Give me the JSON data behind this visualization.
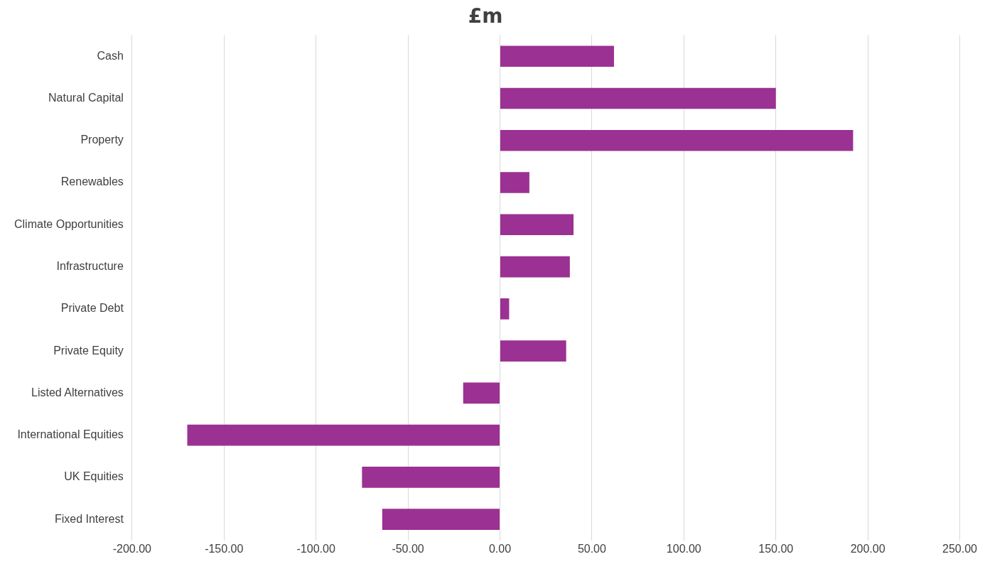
{
  "chart_data": {
    "type": "bar",
    "orientation": "horizontal",
    "title": "£m",
    "categories": [
      "Cash",
      "Natural Capital",
      "Property",
      "Renewables",
      "Climate Opportunities",
      "Infrastructure",
      "Private Debt",
      "Private Equity",
      "Listed Alternatives",
      "International Equities",
      "UK Equities",
      "Fixed Interest"
    ],
    "values": [
      62,
      150,
      192,
      16,
      40,
      38,
      5,
      36,
      -20,
      -170,
      -75,
      -64
    ],
    "color": "#9b3192",
    "xlim": [
      -200,
      250
    ],
    "xticks": [
      {
        "value": -200,
        "label": "-200.00"
      },
      {
        "value": -150,
        "label": "-150.00"
      },
      {
        "value": -100,
        "label": "-100.00"
      },
      {
        "value": -50,
        "label": "-50.00"
      },
      {
        "value": 0,
        "label": "0.00"
      },
      {
        "value": 50,
        "label": "50.00"
      },
      {
        "value": 100,
        "label": "100.00"
      },
      {
        "value": 150,
        "label": "150.00"
      },
      {
        "value": 200,
        "label": "200.00"
      },
      {
        "value": 250,
        "label": "250.00"
      }
    ],
    "grid": "x",
    "legend": false
  }
}
